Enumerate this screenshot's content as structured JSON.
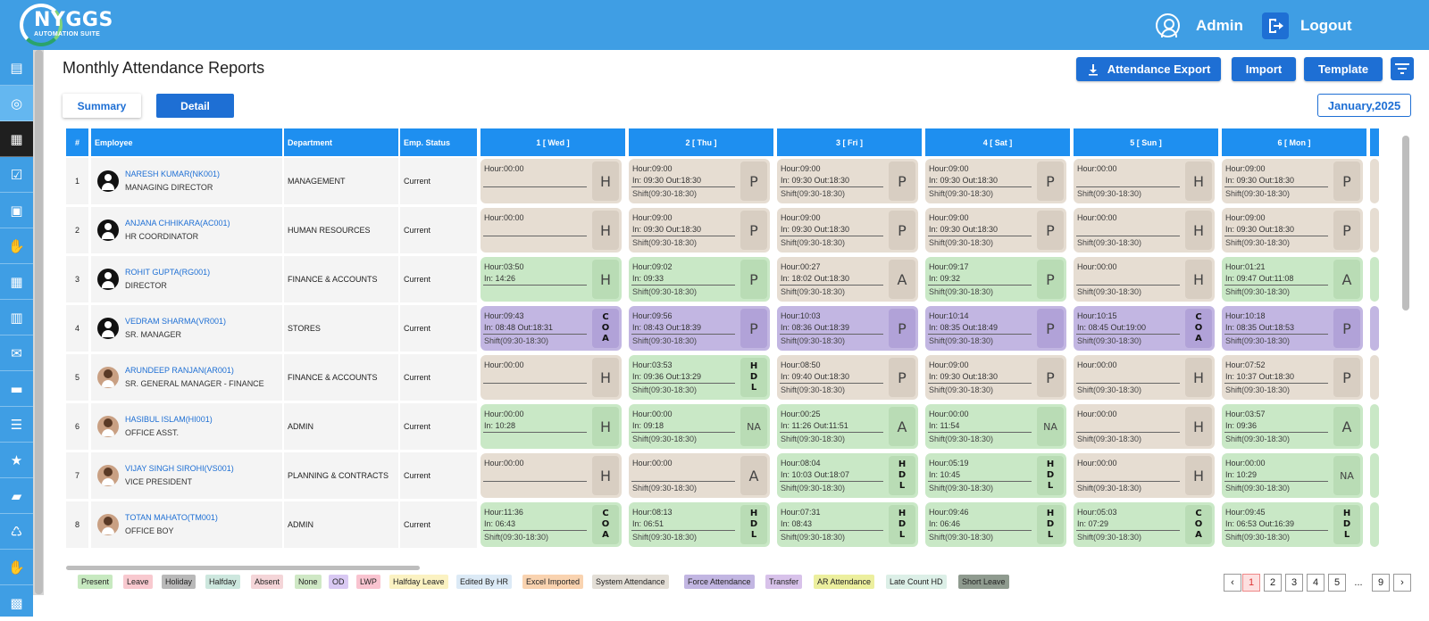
{
  "app": {
    "logo": "NYGGS",
    "logo_sub": "AUTOMATION SUITE"
  },
  "header": {
    "user": "Admin",
    "logout": "Logout",
    "user_icon": "user-circle-icon",
    "logout_icon": "logout-arrow-icon"
  },
  "sidebar": {
    "icons": [
      "calendar-plus-icon",
      "dashboard-gauge-icon",
      "calendar-star-icon",
      "calendar-check-icon",
      "document-gear-icon",
      "hand-coin-icon",
      "calendar-grid-icon",
      "building-icon",
      "inbox-download-icon",
      "briefcase-icon",
      "hierarchy-icon",
      "star-icon",
      "folder-open-icon",
      "recycle-doc-icon",
      "handshake-icon",
      "document-lock-icon"
    ]
  },
  "page": {
    "title": "Monthly Attendance Reports"
  },
  "toolbar": {
    "export": "Attendance Export",
    "import": "Import",
    "template": "Template",
    "export_icon": "download-icon",
    "filter_icon": "filter-icon"
  },
  "tabs": {
    "summary": "Summary",
    "detail": "Detail"
  },
  "month": "January,2025",
  "columns": {
    "num": "#",
    "employee": "Employee",
    "department": "Department",
    "status": "Emp. Status",
    "days": [
      "1 [ Wed ]",
      "2 [ Thu ]",
      "3 [ Fri ]",
      "4 [ Sat ]",
      "5 [ Sun ]",
      "6 [ Mon ]"
    ]
  },
  "rows": [
    {
      "n": "1",
      "name": "NARESH KUMAR(NK001)",
      "role": "MANAGING DIRECTOR",
      "dept": "MANAGEMENT",
      "status": "Current",
      "avatar": "default",
      "days": [
        {
          "c": "holiday",
          "h": "Hour:00:00",
          "io": "",
          "s": "",
          "b": "H"
        },
        {
          "c": "holiday",
          "h": "Hour:09:00",
          "io": "In: 09:30 Out:18:30",
          "s": "Shift(09:30-18:30)",
          "b": "P"
        },
        {
          "c": "holiday",
          "h": "Hour:09:00",
          "io": "In: 09:30 Out:18:30",
          "s": "Shift(09:30-18:30)",
          "b": "P"
        },
        {
          "c": "holiday",
          "h": "Hour:09:00",
          "io": "In: 09:30 Out:18:30",
          "s": "Shift(09:30-18:30)",
          "b": "P"
        },
        {
          "c": "holiday",
          "h": "Hour:00:00",
          "io": "",
          "s": "Shift(09:30-18:30)",
          "b": "H"
        },
        {
          "c": "holiday",
          "h": "Hour:09:00",
          "io": "In: 09:30 Out:18:30",
          "s": "Shift(09:30-18:30)",
          "b": "P"
        }
      ]
    },
    {
      "n": "2",
      "name": "ANJANA CHHIKARA(AC001)",
      "role": "HR COORDINATOR",
      "dept": "HUMAN RESOURCES",
      "status": "Current",
      "avatar": "default",
      "days": [
        {
          "c": "holiday",
          "h": "Hour:00:00",
          "io": "",
          "s": "",
          "b": "H"
        },
        {
          "c": "holiday",
          "h": "Hour:09:00",
          "io": "In: 09:30 Out:18:30",
          "s": "Shift(09:30-18:30)",
          "b": "P"
        },
        {
          "c": "holiday",
          "h": "Hour:09:00",
          "io": "In: 09:30 Out:18:30",
          "s": "Shift(09:30-18:30)",
          "b": "P"
        },
        {
          "c": "holiday",
          "h": "Hour:09:00",
          "io": "In: 09:30 Out:18:30",
          "s": "Shift(09:30-18:30)",
          "b": "P"
        },
        {
          "c": "holiday",
          "h": "Hour:00:00",
          "io": "",
          "s": "Shift(09:30-18:30)",
          "b": "H"
        },
        {
          "c": "holiday",
          "h": "Hour:09:00",
          "io": "In: 09:30 Out:18:30",
          "s": "Shift(09:30-18:30)",
          "b": "P"
        }
      ]
    },
    {
      "n": "3",
      "name": "ROHIT GUPTA(RG001)",
      "role": "DIRECTOR",
      "dept": "FINANCE & ACCOUNTS",
      "status": "Current",
      "avatar": "default",
      "days": [
        {
          "c": "present",
          "h": "Hour:03:50",
          "io": "In: 14:26",
          "s": "",
          "b": "H"
        },
        {
          "c": "present",
          "h": "Hour:09:02",
          "io": "In: 09:33",
          "s": "Shift(09:30-18:30)",
          "b": "P"
        },
        {
          "c": "holiday",
          "h": "Hour:00:27",
          "io": "In: 18:02 Out:18:30",
          "s": "Shift(09:30-18:30)",
          "b": "A"
        },
        {
          "c": "present",
          "h": "Hour:09:17",
          "io": "In: 09:32",
          "s": "Shift(09:30-18:30)",
          "b": "P"
        },
        {
          "c": "holiday",
          "h": "Hour:00:00",
          "io": "",
          "s": "Shift(09:30-18:30)",
          "b": "H"
        },
        {
          "c": "present",
          "h": "Hour:01:21",
          "io": "In: 09:47 Out:11:08",
          "s": "Shift(09:30-18:30)",
          "b": "A"
        }
      ]
    },
    {
      "n": "4",
      "name": "VEDRAM SHARMA(VR001)",
      "role": "SR. MANAGER",
      "dept": "STORES",
      "status": "Current",
      "avatar": "default",
      "days": [
        {
          "c": "force",
          "h": "Hour:09:43",
          "io": "In: 08:48 Out:18:31",
          "s": "Shift(09:30-18:30)",
          "b": "C\nO\nA"
        },
        {
          "c": "force",
          "h": "Hour:09:56",
          "io": "In: 08:43 Out:18:39",
          "s": "Shift(09:30-18:30)",
          "b": "P"
        },
        {
          "c": "force",
          "h": "Hour:10:03",
          "io": "In: 08:36 Out:18:39",
          "s": "Shift(09:30-18:30)",
          "b": "P"
        },
        {
          "c": "force",
          "h": "Hour:10:14",
          "io": "In: 08:35 Out:18:49",
          "s": "Shift(09:30-18:30)",
          "b": "P"
        },
        {
          "c": "force",
          "h": "Hour:10:15",
          "io": "In: 08:45 Out:19:00",
          "s": "Shift(09:30-18:30)",
          "b": "C\nO\nA"
        },
        {
          "c": "force",
          "h": "Hour:10:18",
          "io": "In: 08:35 Out:18:53",
          "s": "Shift(09:30-18:30)",
          "b": "P"
        }
      ]
    },
    {
      "n": "5",
      "name": "ARUNDEEP RANJAN(AR001)",
      "role": "SR. GENERAL MANAGER - FINANCE",
      "dept": "FINANCE & ACCOUNTS",
      "status": "Current",
      "avatar": "photo",
      "days": [
        {
          "c": "holiday",
          "h": "Hour:00:00",
          "io": "",
          "s": "",
          "b": "H"
        },
        {
          "c": "present",
          "h": "Hour:03:53",
          "io": "In: 09:36 Out:13:29",
          "s": "Shift(09:30-18:30)",
          "b": "H\nD\nL"
        },
        {
          "c": "holiday",
          "h": "Hour:08:50",
          "io": "In: 09:40 Out:18:30",
          "s": "Shift(09:30-18:30)",
          "b": "P"
        },
        {
          "c": "holiday",
          "h": "Hour:09:00",
          "io": "In: 09:30 Out:18:30",
          "s": "Shift(09:30-18:30)",
          "b": "P"
        },
        {
          "c": "holiday",
          "h": "Hour:00:00",
          "io": "",
          "s": "Shift(09:30-18:30)",
          "b": "H"
        },
        {
          "c": "holiday",
          "h": "Hour:07:52",
          "io": "In: 10:37 Out:18:30",
          "s": "Shift(09:30-18:30)",
          "b": "P"
        }
      ]
    },
    {
      "n": "6",
      "name": "HASIBUL ISLAM(HI001)",
      "role": "OFFICE ASST.",
      "dept": "ADMIN",
      "status": "Current",
      "avatar": "photo",
      "days": [
        {
          "c": "present",
          "h": "Hour:00:00",
          "io": "In: 10:28",
          "s": "",
          "b": "H"
        },
        {
          "c": "present",
          "h": "Hour:00:00",
          "io": "In: 09:18",
          "s": "Shift(09:30-18:30)",
          "b": "NA"
        },
        {
          "c": "present",
          "h": "Hour:00:25",
          "io": "In: 11:26 Out:11:51",
          "s": "Shift(09:30-18:30)",
          "b": "A"
        },
        {
          "c": "present",
          "h": "Hour:00:00",
          "io": "In: 11:54",
          "s": "Shift(09:30-18:30)",
          "b": "NA"
        },
        {
          "c": "holiday",
          "h": "Hour:00:00",
          "io": "",
          "s": "Shift(09:30-18:30)",
          "b": "H"
        },
        {
          "c": "present",
          "h": "Hour:03:57",
          "io": "In: 09:36",
          "s": "Shift(09:30-18:30)",
          "b": "A"
        }
      ]
    },
    {
      "n": "7",
      "name": "VIJAY SINGH SIROHI(VS001)",
      "role": "VICE PRESIDENT",
      "dept": "PLANNING & CONTRACTS",
      "status": "Current",
      "avatar": "photo",
      "days": [
        {
          "c": "holiday",
          "h": "Hour:00:00",
          "io": "",
          "s": "",
          "b": "H"
        },
        {
          "c": "holiday",
          "h": "Hour:00:00",
          "io": "",
          "s": "Shift(09:30-18:30)",
          "b": "A"
        },
        {
          "c": "present",
          "h": "Hour:08:04",
          "io": "In: 10:03 Out:18:07",
          "s": "Shift(09:30-18:30)",
          "b": "H\nD\nL"
        },
        {
          "c": "present",
          "h": "Hour:05:19",
          "io": "In: 10:45",
          "s": "Shift(09:30-18:30)",
          "b": "H\nD\nL"
        },
        {
          "c": "holiday",
          "h": "Hour:00:00",
          "io": "",
          "s": "Shift(09:30-18:30)",
          "b": "H"
        },
        {
          "c": "present",
          "h": "Hour:00:00",
          "io": "In: 10:29",
          "s": "Shift(09:30-18:30)",
          "b": "NA"
        }
      ]
    },
    {
      "n": "8",
      "name": "TOTAN MAHATO(TM001)",
      "role": "OFFICE BOY",
      "dept": "ADMIN",
      "status": "Current",
      "avatar": "photo",
      "days": [
        {
          "c": "present",
          "h": "Hour:11:36",
          "io": "In: 06:43",
          "s": "Shift(09:30-18:30)",
          "b": "C\nO\nA"
        },
        {
          "c": "present",
          "h": "Hour:08:13",
          "io": "In: 06:51",
          "s": "Shift(09:30-18:30)",
          "b": "H\nD\nL"
        },
        {
          "c": "present",
          "h": "Hour:07:31",
          "io": "In: 08:43",
          "s": "Shift(09:30-18:30)",
          "b": "H\nD\nL"
        },
        {
          "c": "present",
          "h": "Hour:09:46",
          "io": "In: 06:46",
          "s": "Shift(09:30-18:30)",
          "b": "H\nD\nL"
        },
        {
          "c": "present",
          "h": "Hour:05:03",
          "io": "In: 07:29",
          "s": "Shift(09:30-18:30)",
          "b": "C\nO\nA"
        },
        {
          "c": "present",
          "h": "Hour:09:45",
          "io": "In: 06:53 Out:16:39",
          "s": "Shift(09:30-18:30)",
          "b": "H\nD\nL"
        }
      ]
    }
  ],
  "legend": [
    {
      "label": "Present",
      "color": "#c7e9c0"
    },
    {
      "label": "Leave",
      "color": "#f8c9cf"
    },
    {
      "label": "Holiday",
      "color": "#b9b9b9"
    },
    {
      "label": "Halfday",
      "color": "#cde7de"
    },
    {
      "label": "Absent",
      "color": "#f4d5d8"
    },
    {
      "label": "None",
      "color": "#cfe8c5"
    },
    {
      "label": "OD",
      "color": "#d9c9f3"
    },
    {
      "label": "LWP",
      "color": "#f9c4d0"
    },
    {
      "label": "Halfday Leave",
      "color": "#fbf2c2"
    },
    {
      "label": "Edited By HR",
      "color": "#dceaf6"
    },
    {
      "label": "Excel Imported",
      "color": "#f9d3b0"
    },
    {
      "label": "System Attendance",
      "color": "#e3ded6"
    },
    {
      "label": "Force Attendance",
      "color": "#c2b6e2"
    },
    {
      "label": "Transfer",
      "color": "#d8c2ea"
    },
    {
      "label": "AR Attendance",
      "color": "#ecef9e"
    },
    {
      "label": "Late Count HD",
      "color": "#dcefe7"
    },
    {
      "label": "Short Leave",
      "color": "#8f9b8f"
    }
  ],
  "pagination": {
    "prev": "‹",
    "pages": [
      "1",
      "2",
      "3",
      "4",
      "5",
      "...",
      "9"
    ],
    "next": "›",
    "current": "1"
  }
}
